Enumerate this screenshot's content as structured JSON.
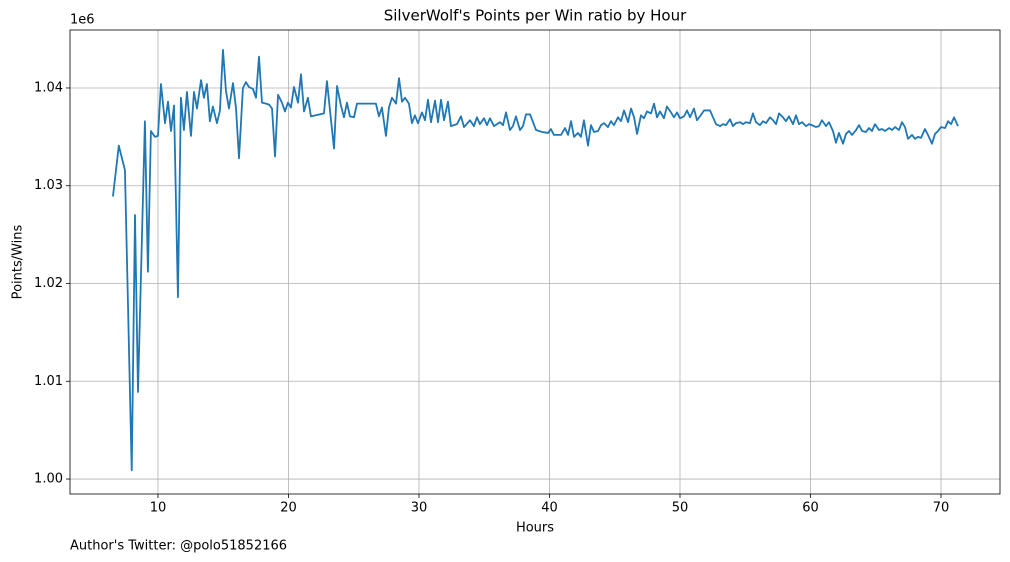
{
  "chart_data": {
    "type": "line",
    "title": "SilverWolf's Points per Win ratio by Hour",
    "xlabel": "Hours",
    "ylabel": "Points/Wins",
    "y_offset_label": "1e6",
    "footnote": "Author's Twitter: @polo51852166",
    "color": "#1f77b4",
    "grid": true,
    "xlim": [
      3.26,
      74.52
    ],
    "ylim": [
      0.99847,
      1.04593
    ],
    "xticks": [
      10,
      20,
      30,
      40,
      50,
      60,
      70
    ],
    "yticks": [
      {
        "value": 1,
        "label": "1.00"
      },
      1.01,
      1.02,
      1.03,
      1.04
    ],
    "x": [
      6.55,
      7.0,
      7.47,
      7.99,
      8.24,
      8.47,
      9.0,
      9.23,
      9.46,
      9.77,
      10.0,
      10.23,
      10.54,
      10.77,
      11.0,
      11.23,
      11.53,
      11.76,
      11.99,
      12.22,
      12.53,
      12.76,
      12.99,
      13.3,
      13.52,
      13.75,
      13.98,
      14.21,
      14.52,
      14.75,
      14.98,
      15.21,
      15.44,
      15.75,
      15.98,
      16.21,
      16.51,
      16.74,
      16.97,
      17.28,
      17.51,
      17.74,
      17.97,
      18.28,
      18.51,
      18.74,
      18.97,
      19.2,
      19.5,
      19.73,
      19.96,
      20.19,
      20.42,
      20.73,
      20.96,
      21.19,
      21.49,
      21.72,
      22.72,
      22.95,
      23.26,
      23.49,
      23.72,
      24.02,
      24.25,
      24.48,
      24.71,
      25.02,
      25.25,
      26.7,
      26.93,
      27.16,
      27.47,
      27.7,
      27.93,
      28.24,
      28.47,
      28.7,
      28.93,
      29.23,
      29.46,
      29.69,
      29.92,
      30.23,
      30.46,
      30.69,
      30.92,
      31.23,
      31.46,
      31.69,
      31.92,
      32.22,
      32.45,
      32.91,
      33.22,
      33.45,
      33.91,
      34.21,
      34.44,
      34.67,
      34.98,
      35.21,
      35.44,
      35.75,
      36.21,
      36.44,
      36.67,
      36.97,
      37.2,
      37.43,
      37.74,
      37.97,
      38.2,
      38.51,
      38.97,
      39.43,
      39.89,
      40.11,
      40.34,
      40.88,
      41.19,
      41.42,
      41.65,
      41.88,
      42.18,
      42.41,
      42.64,
      42.95,
      43.18,
      43.41,
      43.72,
      43.95,
      44.18,
      44.48,
      44.71,
      44.94,
      45.25,
      45.48,
      45.71,
      46.02,
      46.25,
      46.48,
      46.71,
      47.01,
      47.24,
      47.47,
      47.78,
      48.01,
      48.24,
      48.47,
      48.77,
      49.0,
      49.31,
      49.54,
      49.77,
      50.0,
      50.31,
      50.54,
      50.77,
      51.07,
      51.3,
      51.53,
      51.84,
      52.3,
      52.53,
      52.76,
      53.07,
      53.3,
      53.53,
      53.83,
      54.06,
      54.29,
      54.6,
      54.83,
      55.06,
      55.36,
      55.59,
      55.82,
      56.13,
      56.36,
      56.59,
      56.9,
      57.13,
      57.36,
      57.59,
      57.89,
      58.12,
      58.35,
      58.66,
      58.89,
      59.12,
      59.35,
      59.66,
      59.89,
      60.11,
      60.42,
      60.65,
      60.88,
      61.19,
      61.42,
      61.72,
      61.95,
      62.18,
      62.49,
      62.72,
      62.95,
      63.18,
      63.49,
      63.72,
      63.95,
      64.25,
      64.48,
      64.71,
      64.94,
      65.25,
      65.48,
      65.71,
      66.02,
      66.25,
      66.48,
      66.78,
      67.01,
      67.24,
      67.47,
      67.78,
      68.01,
      68.24,
      68.47,
      68.77,
      69.0,
      69.31,
      69.54,
      69.77,
      70.0,
      70.31,
      70.54,
      70.77,
      71.0,
      71.3
    ],
    "values": [
      1.0289,
      1.0341,
      1.0316,
      1.0009,
      1.027,
      1.0089,
      1.0366,
      1.0212,
      1.0356,
      1.035,
      1.0351,
      1.0404,
      1.0364,
      1.0386,
      1.0356,
      1.0382,
      1.0186,
      1.039,
      1.0357,
      1.0396,
      1.0351,
      1.0396,
      1.0379,
      1.0408,
      1.039,
      1.0404,
      1.0366,
      1.0381,
      1.0364,
      1.0377,
      1.0439,
      1.0397,
      1.0379,
      1.0405,
      1.0379,
      1.0328,
      1.04,
      1.0406,
      1.0401,
      1.0399,
      1.039,
      1.0432,
      1.0385,
      1.0384,
      1.0383,
      1.0379,
      1.033,
      1.0393,
      1.0385,
      1.0376,
      1.0385,
      1.038,
      1.0401,
      1.0385,
      1.0414,
      1.0376,
      1.039,
      1.0371,
      1.0374,
      1.0407,
      1.0367,
      1.0338,
      1.0402,
      1.0382,
      1.037,
      1.0385,
      1.0371,
      1.037,
      1.0384,
      1.0384,
      1.0371,
      1.038,
      1.0351,
      1.038,
      1.039,
      1.0384,
      1.041,
      1.0386,
      1.039,
      1.0384,
      1.0364,
      1.0372,
      1.0364,
      1.0375,
      1.0367,
      1.0388,
      1.0365,
      1.0387,
      1.0365,
      1.0388,
      1.0367,
      1.0386,
      1.0361,
      1.0363,
      1.0371,
      1.036,
      1.0367,
      1.0361,
      1.037,
      1.0363,
      1.0369,
      1.0362,
      1.0369,
      1.0361,
      1.0365,
      1.0362,
      1.0375,
      1.0357,
      1.0361,
      1.0371,
      1.0357,
      1.0361,
      1.0373,
      1.0373,
      1.0357,
      1.0355,
      1.0354,
      1.0358,
      1.0352,
      1.0352,
      1.0359,
      1.0352,
      1.0366,
      1.035,
      1.0354,
      1.035,
      1.0367,
      1.0341,
      1.0362,
      1.0355,
      1.0356,
      1.0362,
      1.0364,
      1.036,
      1.0366,
      1.0362,
      1.037,
      1.0366,
      1.0377,
      1.0365,
      1.0379,
      1.037,
      1.0353,
      1.0372,
      1.0369,
      1.0376,
      1.0374,
      1.0384,
      1.037,
      1.0376,
      1.0369,
      1.0381,
      1.0375,
      1.037,
      1.0375,
      1.0369,
      1.0371,
      1.0377,
      1.037,
      1.0379,
      1.0367,
      1.0371,
      1.0377,
      1.0377,
      1.037,
      1.0363,
      1.0361,
      1.0363,
      1.0362,
      1.0368,
      1.0361,
      1.0364,
      1.0365,
      1.0363,
      1.0365,
      1.0364,
      1.0374,
      1.0365,
      1.0362,
      1.0366,
      1.0364,
      1.037,
      1.0367,
      1.0363,
      1.0374,
      1.037,
      1.0366,
      1.0371,
      1.0363,
      1.0372,
      1.0363,
      1.0365,
      1.0361,
      1.0363,
      1.0362,
      1.036,
      1.0361,
      1.0367,
      1.0361,
      1.0365,
      1.0356,
      1.0344,
      1.0354,
      1.0343,
      1.0353,
      1.0356,
      1.0352,
      1.0357,
      1.0362,
      1.0356,
      1.0355,
      1.0359,
      1.0356,
      1.0363,
      1.0357,
      1.0358,
      1.0356,
      1.0359,
      1.0357,
      1.036,
      1.0357,
      1.0365,
      1.036,
      1.0348,
      1.0352,
      1.0348,
      1.035,
      1.0349,
      1.0358,
      1.0352,
      1.0343,
      1.0353,
      1.0356,
      1.036,
      1.0359,
      1.0366,
      1.0363,
      1.037,
      1.0361
    ]
  }
}
